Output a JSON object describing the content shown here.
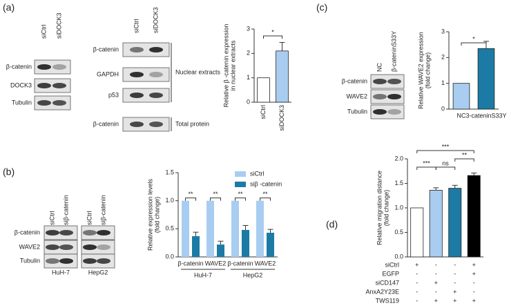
{
  "panel_labels": [
    "(a)",
    "(b)",
    "(c)",
    "(d)"
  ],
  "blots": [
    {
      "lanes": [
        "siCtrl",
        "siDOCK3"
      ],
      "rows": [
        "β-catenin",
        "DOCK3",
        "Tubulin"
      ]
    },
    {
      "lanes": [
        "siCtrl",
        "siDOCK3"
      ],
      "rows": [
        "β-catenin",
        "GAPDH",
        "p53",
        "β-catenin"
      ],
      "brackets": [
        "Nuclear extracts",
        "Total protein"
      ]
    },
    {
      "lanes": [
        "NC",
        "β-cateninS33Y"
      ],
      "rows": [
        "β-catenin",
        "WAVE2",
        "Tubulin"
      ]
    },
    {
      "lanes": [
        "siCtrl",
        "siβ-catenin",
        "siCtrl",
        "siβ-catenin"
      ],
      "rows": [
        "β-catenin",
        "WAVE2",
        "Tubulin"
      ],
      "groups": [
        "HuH-7",
        "HepG2"
      ]
    }
  ],
  "chart_data": [
    {
      "type": "bar",
      "ylabel": [
        "Relative β -catenin expression",
        "in nuclear extracts"
      ],
      "categories": [
        "siCtrl",
        "siDOCK3"
      ],
      "values": [
        1,
        2.1
      ],
      "errors": [
        0,
        0.35
      ],
      "colors": [
        "#ffffff",
        "#a8cdf0"
      ],
      "ylim": [
        0,
        3
      ],
      "yticks": [
        0,
        1,
        2,
        3
      ],
      "significance": [
        "*"
      ]
    },
    {
      "type": "bar",
      "ylabel": [
        "Relative WAVE2 expression",
        "(fold change)"
      ],
      "categories": [
        "NC",
        "3-cateninS33Y"
      ],
      "values": [
        1,
        2.35
      ],
      "errors": [
        0,
        0.28
      ],
      "colors": [
        "#a8cdf0",
        "#1b7ba5"
      ],
      "ylim": [
        0,
        3
      ],
      "yticks": [
        0,
        1,
        2,
        3
      ],
      "significance": [
        "*"
      ]
    },
    {
      "type": "grouped-bar",
      "ylabel": [
        "Relative expression levels",
        "(fold change)"
      ],
      "categories": [
        "β-catenin",
        "WAVE2",
        "β-catenin",
        "WAVE2"
      ],
      "groups": [
        "HuH-7",
        "HepG2"
      ],
      "series": [
        {
          "name": "siCtrl",
          "color": "#a8cdf0",
          "values": [
            1,
            1,
            1,
            1
          ],
          "errors": [
            0,
            0,
            0,
            0
          ]
        },
        {
          "name": "siβ -catenin",
          "color": "#1b7ba5",
          "values": [
            0.37,
            0.22,
            0.48,
            0.43
          ],
          "errors": [
            0.07,
            0.06,
            0.08,
            0.06
          ]
        }
      ],
      "ylim": [
        0,
        1.5
      ],
      "yticks": [
        {
          "value": 0,
          "label": "0.0"
        },
        {
          "value": 0.5,
          "label": "0.5"
        },
        {
          "value": 1,
          "label": "1.0"
        },
        {
          "value": 1.5,
          "label": "1.5"
        }
      ],
      "legend": "upper right",
      "significance": [
        "**",
        "**",
        "**",
        "**"
      ]
    },
    {
      "type": "bar",
      "ylabel": [
        "Relative migration distance",
        "(fold change)"
      ],
      "values": [
        1,
        1.36,
        1.4,
        1.66
      ],
      "errors": [
        0,
        0.05,
        0.06,
        0.05
      ],
      "colors": [
        "#ffffff",
        "#a8cdf0",
        "#1b7ba5",
        "#000000"
      ],
      "ylim": [
        0,
        2
      ],
      "yticks": [
        {
          "value": 0,
          "label": "0.0"
        },
        {
          "value": 0.5,
          "label": "0.5"
        },
        {
          "value": 1,
          "label": "1.0"
        },
        {
          "value": 1.5,
          "label": "1.5"
        },
        {
          "value": 2,
          "label": "2.0"
        }
      ],
      "significance": [
        "***",
        "ns",
        "**",
        "***"
      ],
      "conditions": [
        {
          "label": "siCtrl",
          "signs": [
            "+",
            "-",
            "-",
            "+"
          ]
        },
        {
          "label": "EGFP",
          "signs": [
            "-",
            "-",
            "-",
            "+"
          ]
        },
        {
          "label": "siCD147",
          "signs": [
            "-",
            "+",
            "-",
            "-"
          ]
        },
        {
          "label": "AnxA2Y23E",
          "signs": [
            "-",
            "-",
            "+",
            "-"
          ]
        },
        {
          "label": "TWS119",
          "signs": [
            "-",
            "+",
            "+",
            "+"
          ]
        }
      ]
    }
  ]
}
